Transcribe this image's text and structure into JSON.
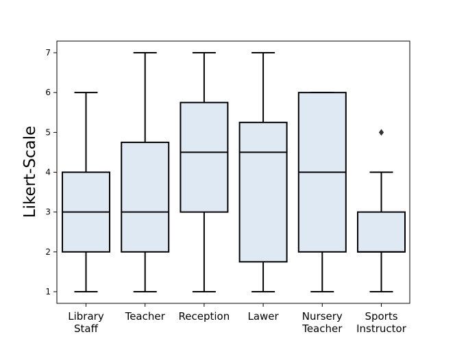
{
  "chart_data": {
    "type": "box",
    "ylabel": "Likert-Scale",
    "ylim": [
      0.7,
      7.3
    ],
    "yticks": [
      1,
      2,
      3,
      4,
      5,
      6,
      7
    ],
    "grid": false,
    "box_fill": "#dfe9f3",
    "line_color": "#000000",
    "categories": [
      {
        "lines": [
          "Library",
          "Staff"
        ],
        "whisker_low": 1,
        "q1": 2,
        "median": 3,
        "q3": 4,
        "whisker_high": 6,
        "outliers": []
      },
      {
        "lines": [
          "Teacher"
        ],
        "whisker_low": 1,
        "q1": 2,
        "median": 3,
        "q3": 4.75,
        "whisker_high": 7,
        "outliers": []
      },
      {
        "lines": [
          "Reception"
        ],
        "whisker_low": 1,
        "q1": 3,
        "median": 4.5,
        "q3": 5.75,
        "whisker_high": 7,
        "outliers": []
      },
      {
        "lines": [
          "Lawer"
        ],
        "whisker_low": 1,
        "q1": 1.75,
        "median": 4.5,
        "q3": 5.25,
        "whisker_high": 7,
        "outliers": []
      },
      {
        "lines": [
          "Nursery",
          "Teacher"
        ],
        "whisker_low": 1,
        "q1": 2,
        "median": 4,
        "q3": 6,
        "whisker_high": 6,
        "outliers": []
      },
      {
        "lines": [
          "Sports",
          "Instructor"
        ],
        "whisker_low": 1,
        "q1": 2,
        "median": 2,
        "q3": 3,
        "whisker_high": 4,
        "outliers": [
          5
        ]
      }
    ]
  }
}
